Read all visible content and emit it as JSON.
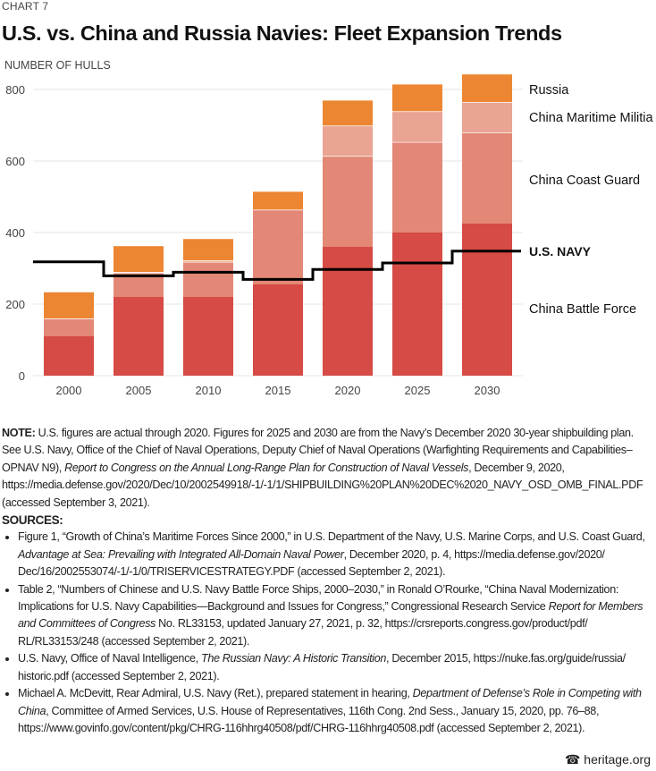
{
  "kicker": "CHART 7",
  "title": "U.S. vs. China and Russia Navies: Fleet Expansion Trends",
  "chart_data": {
    "type": "bar",
    "stacked": true,
    "ylabel": "NUMBER OF HULLS",
    "ylim": [
      0,
      800
    ],
    "yticks": [
      0,
      200,
      400,
      600,
      800
    ],
    "grid": true,
    "categories": [
      "2000",
      "2005",
      "2010",
      "2015",
      "2020",
      "2025",
      "2030"
    ],
    "series": [
      {
        "name": "China Battle Force",
        "color": "#d64b45",
        "values": [
          110,
          220,
          220,
          255,
          360,
          400,
          425
        ]
      },
      {
        "name": "China Coast Guard",
        "color": "#e38776",
        "values": [
          50,
          68,
          98,
          209,
          254,
          253,
          255
        ]
      },
      {
        "name": "China Maritime Militia",
        "color": "#eaa493",
        "values": [
          0,
          2,
          4,
          0,
          85,
          86,
          85
        ]
      },
      {
        "name": "Russia",
        "color": "#ec8632",
        "values": [
          73,
          72,
          60,
          50,
          70,
          75,
          77
        ]
      }
    ],
    "line": {
      "name": "U.S. NAVY",
      "color": "#000000",
      "style": "step",
      "values": [
        318,
        279,
        289,
        269,
        297,
        315,
        348
      ]
    },
    "legend_placement": "right, inline labels"
  },
  "note": {
    "label": "NOTE:",
    "segments": [
      {
        "t": " U.S. figures are actual through 2020. Figures for 2025 and 2030 are from the Navy’s December 2020 30-year shipbuilding plan. See U.S. Navy, Office of the Chief of Naval Operations, Deputy Chief of Naval Operations (Warfighting Requirements and Capabilities–OPNAV N9), "
      },
      {
        "t": "Report to Congress on the Annual Long-Range Plan for Construction of Naval Vessels",
        "i": true
      },
      {
        "t": ", December 9, 2020, https://media.defense.gov/2020/Dec/10/2002549918/-1/-1/1/SHIPBUILDING%20PLAN%20DEC%2020_NAVY_OSD_OMB_FINAL.PDF (accessed September 3, 2021)."
      }
    ]
  },
  "sources_label": "SOURCES:",
  "sources": [
    [
      {
        "t": "Figure 1, “Growth of China’s Maritime Forces Since 2000,” in U.S. Department of the Navy, U.S. Marine Corps, and U.S. Coast Guard, "
      },
      {
        "t": "Advantage at Sea: Prevailing with Integrated All-Domain Naval Power",
        "i": true
      },
      {
        "t": ", December 2020, p. 4, https://media.defense.gov/2020/ Dec/16/2002553074/-1/-1/0/TRISERVICESTRATEGY.PDF (accessed September 2, 2021)."
      }
    ],
    [
      {
        "t": "Table 2, “Numbers of Chinese and U.S. Navy Battle Force Ships, 2000–2030,” in Ronald O’Rourke, “China Naval Modernization: Implications for U.S. Navy Capabilities—Background and Issues for Congress,” Congressional Research Service "
      },
      {
        "t": "Report for Members and Committees of Congress",
        "i": true
      },
      {
        "t": " No. RL33153, updated January 27, 2021, p. 32, https://crsreports.congress.gov/product/pdf/ RL/RL33153/248 (accessed September 2, 2021)."
      }
    ],
    [
      {
        "t": "U.S. Navy, Office of Naval Intelligence, "
      },
      {
        "t": "The Russian Navy: A Historic Transition",
        "i": true
      },
      {
        "t": ", December 2015, https://nuke.fas.org/guide/russia/ historic.pdf (accessed September 2, 2021)."
      }
    ],
    [
      {
        "t": "Michael A. McDevitt, Rear Admiral, U.S. Navy (Ret.), prepared statement in hearing, "
      },
      {
        "t": "Department of Defense’s Role in Competing with China",
        "i": true
      },
      {
        "t": ", Committee of Armed Services, U.S. House of Representatives, 116th Cong. 2nd Sess., January 15, 2020, pp. 76–88, https://www.govinfo.gov/content/pkg/CHRG-116hhrg40508/pdf/CHRG-116hhrg40508.pdf (accessed September 2, 2021)."
      }
    ]
  ],
  "logo": {
    "icon": "liberty-bell-icon",
    "text": "heritage.org"
  }
}
